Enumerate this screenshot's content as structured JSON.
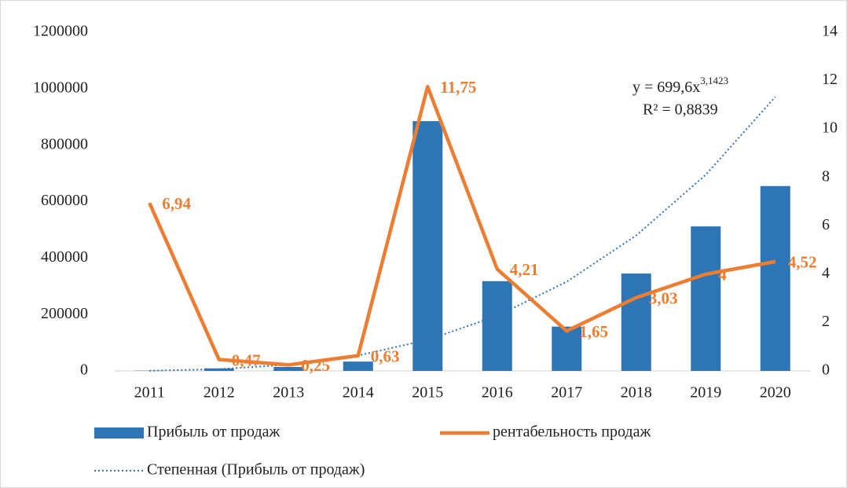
{
  "chart_data": {
    "type": "bar_line",
    "categories": [
      "2011",
      "2012",
      "2013",
      "2014",
      "2015",
      "2016",
      "2017",
      "2018",
      "2019",
      "2020"
    ],
    "series": [
      {
        "name": "Прибыль от продаж",
        "type": "bar",
        "color": "#2e75b6",
        "values": [
          1000,
          9000,
          14000,
          33000,
          885000,
          318000,
          157000,
          345000,
          512000,
          655000
        ]
      },
      {
        "name": "рентабельность продаж",
        "type": "line",
        "axis": "y2",
        "color": "#ed7d31",
        "values": [
          6.94,
          0.47,
          0.25,
          0.63,
          11.75,
          4.21,
          1.65,
          3.03,
          4,
          4.52
        ],
        "value_labels": [
          "6,94",
          "0,47",
          "0,25",
          "0,63",
          "11,75",
          "4,21",
          "1,65",
          "3,03",
          "4",
          "4,52"
        ]
      },
      {
        "name": "Степенная (Прибыль от продаж)",
        "type": "trend",
        "color": "#2e75b6",
        "values": [
          700,
          6180,
          22100,
          54600,
          109900,
          195000,
          316000,
          480000,
          695000,
          971000
        ]
      }
    ],
    "trend_equation": "y = 699,6x",
    "trend_exponent": "3,1423",
    "trend_r2": "R² = 0,8839",
    "ylim": [
      0,
      1200000
    ],
    "yticks": [
      0,
      200000,
      400000,
      600000,
      800000,
      1000000,
      1200000
    ],
    "y2lim": [
      0,
      14
    ],
    "y2ticks": [
      0,
      2,
      4,
      6,
      8,
      10,
      12,
      14
    ],
    "grid": false,
    "legend": "bottom"
  }
}
